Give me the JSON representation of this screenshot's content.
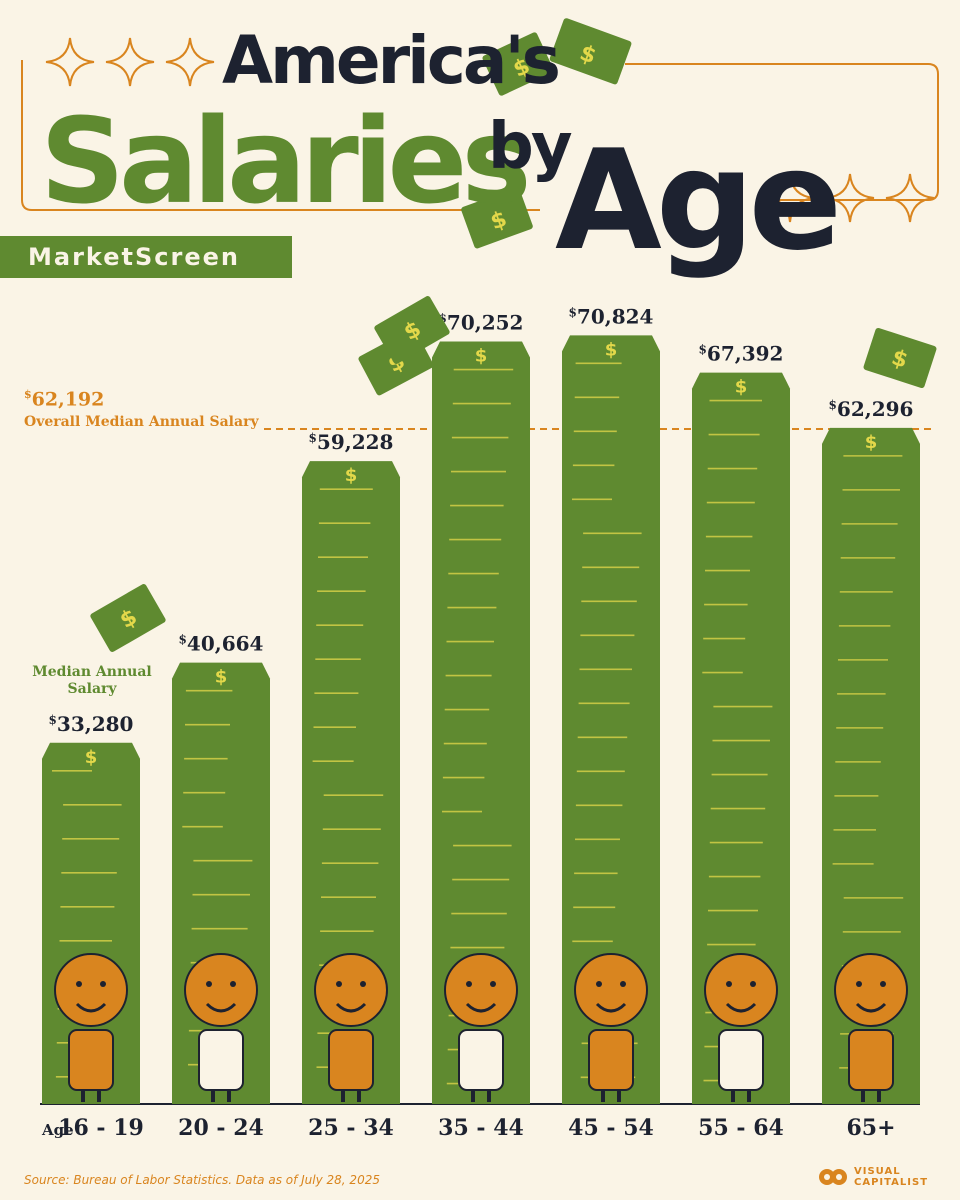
{
  "title": {
    "line1": "America's",
    "line2": "Salaries",
    "by": "by",
    "age": "Age"
  },
  "brand": "MarketScreen",
  "median": {
    "value": "62,192",
    "currency": "$",
    "label": "Overall Median Annual Salary"
  },
  "bar_caption": "Median Annual Salary",
  "age_prefix": "Age",
  "source": "Source: Bureau of Labor Statistics. Data as of July 28, 2025",
  "logo": {
    "line1": "VISUAL",
    "line2": "CAPITALIST"
  },
  "colors": {
    "background": "#faf4e6",
    "bar_green": "#5f8a30",
    "accent_orange": "#d9851f",
    "text_dark": "#1d2230",
    "stripe_yellow": "#e3d84a"
  },
  "chart_data": {
    "type": "bar",
    "title": "America's Salaries by Age",
    "xlabel": "Age",
    "ylabel": "Median Annual Salary",
    "categories": [
      "16 - 19",
      "20 - 24",
      "25 - 34",
      "35 - 44",
      "45 - 54",
      "55 - 64",
      "65+"
    ],
    "values": [
      33280,
      40664,
      59228,
      70252,
      70824,
      67392,
      62296
    ],
    "value_labels": [
      "33,280",
      "40,664",
      "59,228",
      "70,252",
      "70,824",
      "67,392",
      "62,296"
    ],
    "currency": "$",
    "reference_line": {
      "value": 62192,
      "label": "Overall Median Annual Salary"
    },
    "ylim": [
      0,
      75000
    ],
    "grid": false,
    "legend": "none"
  }
}
